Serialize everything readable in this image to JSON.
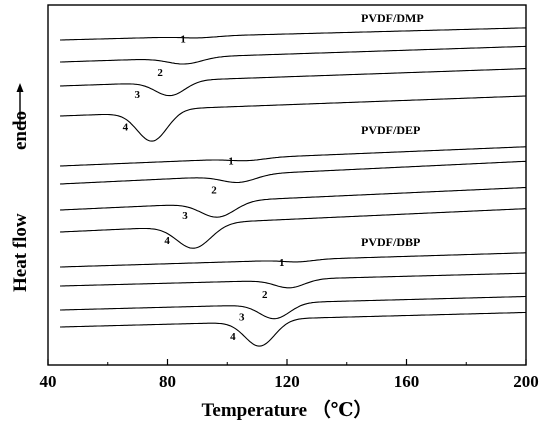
{
  "chart_data": {
    "type": "line",
    "title": "",
    "xlabel": "Temperature （℃）",
    "ylabel": "Heat flow",
    "y_direction_label": "endo",
    "xlim": [
      40,
      200
    ],
    "x_ticks": [
      40,
      80,
      120,
      160,
      200
    ],
    "y_ticks_visible": false,
    "grid": false,
    "legend": "none",
    "groups": [
      {
        "label": "PVDF/DMP",
        "curves": [
          {
            "name": "1",
            "x_start": 44,
            "peak_x": 91,
            "depth": 0.05,
            "width": 8,
            "label": "1"
          },
          {
            "name": "2",
            "x_start": 44,
            "peak_x": 86,
            "depth": 0.21,
            "width": 8,
            "label": "2"
          },
          {
            "name": "3",
            "x_start": 44,
            "peak_x": 81,
            "depth": 0.47,
            "width": 7,
            "label": "3"
          },
          {
            "name": "4",
            "x_start": 44,
            "peak_x": 75,
            "depth": 1.0,
            "width": 7,
            "label": "4"
          }
        ]
      },
      {
        "label": "PVDF/DEP",
        "curves": [
          {
            "name": "1",
            "x_start": 44,
            "peak_x": 107,
            "depth": 0.08,
            "width": 8,
            "label": "1"
          },
          {
            "name": "2",
            "x_start": 44,
            "peak_x": 104,
            "depth": 0.24,
            "width": 8,
            "label": "2"
          },
          {
            "name": "3",
            "x_start": 44,
            "peak_x": 97,
            "depth": 0.5,
            "width": 8,
            "label": "3"
          },
          {
            "name": "4",
            "x_start": 44,
            "peak_x": 89,
            "depth": 0.78,
            "width": 8,
            "label": "4"
          }
        ]
      },
      {
        "label": "PVDF/DBP",
        "curves": [
          {
            "name": "1",
            "x_start": 44,
            "peak_x": 124,
            "depth": 0.07,
            "width": 7,
            "label": "1"
          },
          {
            "name": "2",
            "x_start": 44,
            "peak_x": 121,
            "depth": 0.27,
            "width": 7,
            "label": "2"
          },
          {
            "name": "3",
            "x_start": 44,
            "peak_x": 116,
            "depth": 0.5,
            "width": 7,
            "label": "3"
          },
          {
            "name": "4",
            "x_start": 44,
            "peak_x": 111,
            "depth": 0.85,
            "width": 7,
            "label": "4"
          }
        ]
      }
    ]
  }
}
